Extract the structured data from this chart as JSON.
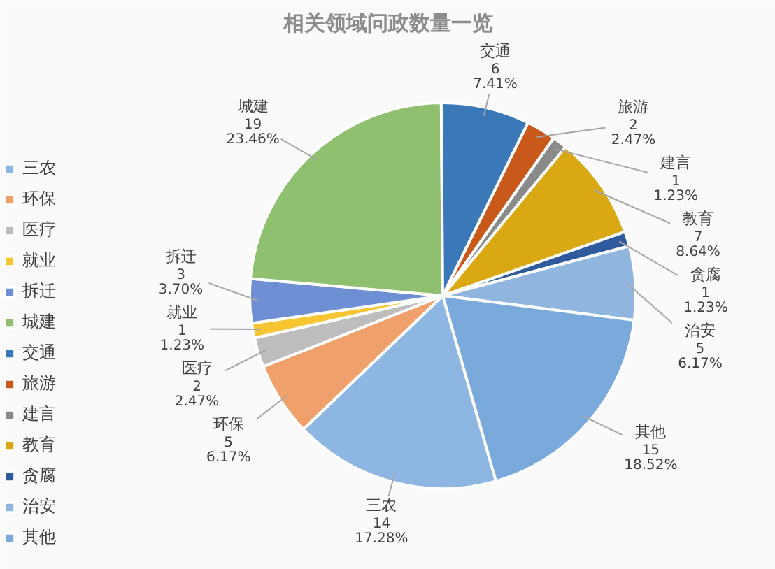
{
  "chart_data": {
    "type": "pie",
    "title": "相关领域问政数量一览",
    "categories": [
      "三农",
      "环保",
      "医疗",
      "就业",
      "拆迁",
      "城建",
      "交通",
      "旅游",
      "建言",
      "教育",
      "贪腐",
      "治安",
      "其他"
    ],
    "values": [
      17.28,
      6.17,
      2.47,
      1.23,
      3.7,
      23.46,
      7.41,
      2.47,
      1.23,
      8.64,
      1.23,
      6.17,
      18.52
    ],
    "value_labels": [
      "14\n17.28%",
      "5\n6.17%",
      "2\n2.47%",
      "1\n1.23%",
      "3\n3.70%",
      "19\n23.46%",
      "6\n7.41%",
      "2\n2.47%",
      "1\n1.23%",
      "7\n8.64%",
      "1\n1.23%",
      "5\n6.17%",
      "15\n18.52%"
    ],
    "colors": [
      "#8db7e2",
      "#f0a06a",
      "#bdbdbd",
      "#f7c531",
      "#6f8fd4",
      "#8fc070",
      "#3a78b8",
      "#c9591b",
      "#8a8a8a",
      "#d9a812",
      "#2f5a9e",
      "#90b6e0",
      "#7aa9dc"
    ],
    "legend": "left"
  }
}
